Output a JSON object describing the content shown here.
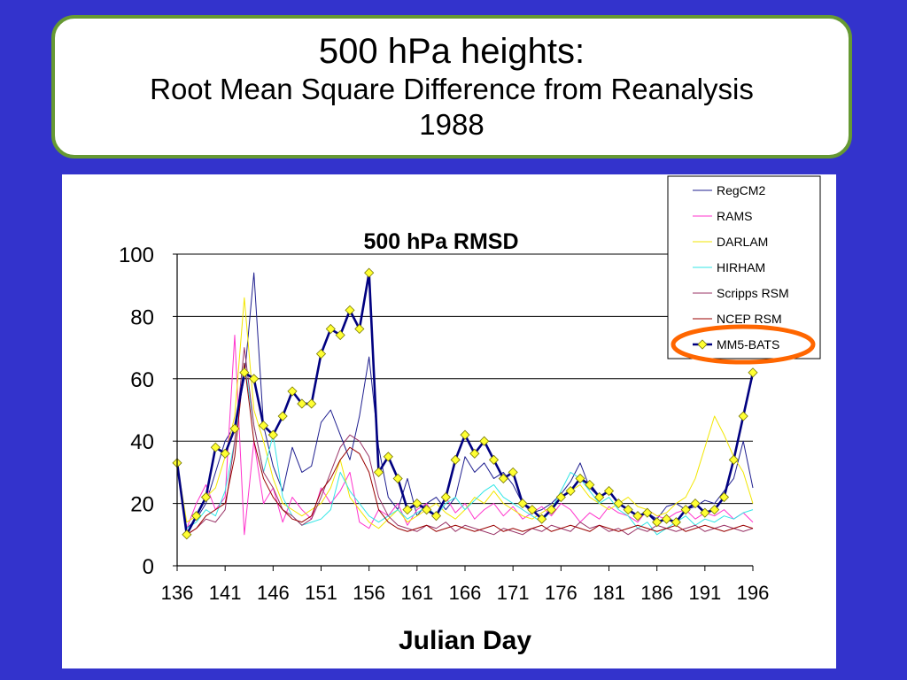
{
  "slide": {
    "title_line1": "500 hPa heights:",
    "title_line2": "Root Mean Square Difference from Reanalysis",
    "title_line3": "1988"
  },
  "colors": {
    "background": "#3333cc",
    "title_border": "#669933",
    "highlight_ellipse": "#ff6600"
  },
  "chart_data": {
    "type": "line",
    "title": "500 hPa RMSD",
    "xlabel": "Julian Day",
    "ylabel": "",
    "xlim": [
      136,
      196
    ],
    "ylim": [
      0,
      100
    ],
    "x_ticks": [
      136,
      141,
      146,
      151,
      156,
      161,
      166,
      171,
      176,
      181,
      186,
      191,
      196
    ],
    "y_ticks": [
      0,
      20,
      40,
      60,
      80,
      100
    ],
    "grid": "horizontal",
    "legend_position": "top-right",
    "highlighted_series": "MM5-BATS",
    "series": [
      {
        "name": "RegCM2",
        "color": "#1f1f8f",
        "x": [
          136,
          137,
          138,
          139,
          140,
          141,
          142,
          143,
          144,
          145,
          146,
          147,
          148,
          149,
          150,
          151,
          152,
          153,
          154,
          155,
          156,
          157,
          158,
          159,
          160,
          161,
          162,
          163,
          164,
          165,
          166,
          167,
          168,
          169,
          170,
          171,
          172,
          173,
          174,
          175,
          176,
          177,
          178,
          179,
          180,
          181,
          182,
          183,
          184,
          185,
          186,
          187,
          188,
          189,
          190,
          191,
          192,
          193,
          194,
          195,
          196
        ],
        "y": [
          33,
          12,
          15,
          20,
          30,
          40,
          45,
          60,
          94,
          45,
          32,
          24,
          38,
          30,
          32,
          46,
          50,
          42,
          34,
          48,
          67,
          38,
          22,
          18,
          28,
          16,
          20,
          22,
          18,
          22,
          35,
          30,
          33,
          28,
          30,
          26,
          20,
          17,
          18,
          20,
          23,
          27,
          33,
          25,
          22,
          24,
          20,
          18,
          16,
          17,
          15,
          19,
          20,
          18,
          19,
          21,
          20,
          24,
          28,
          40,
          25
        ]
      },
      {
        "name": "RAMS",
        "color": "#ff33cc",
        "x": [
          136,
          137,
          138,
          139,
          140,
          141,
          142,
          143,
          144,
          145,
          146,
          147,
          148,
          149,
          150,
          151,
          152,
          153,
          154,
          155,
          156,
          157,
          158,
          159,
          160,
          161,
          162,
          163,
          164,
          165,
          166,
          167,
          168,
          169,
          170,
          171,
          172,
          173,
          174,
          175,
          176,
          177,
          178,
          179,
          180,
          181,
          182,
          183,
          184,
          185,
          186,
          187,
          188,
          189,
          190,
          191,
          192,
          193,
          194,
          195,
          196
        ],
        "y": [
          33,
          12,
          20,
          26,
          18,
          22,
          74,
          10,
          40,
          20,
          25,
          14,
          22,
          18,
          15,
          25,
          20,
          24,
          30,
          14,
          12,
          18,
          16,
          20,
          13,
          18,
          20,
          15,
          22,
          17,
          20,
          15,
          18,
          20,
          16,
          19,
          15,
          17,
          19,
          16,
          20,
          18,
          14,
          17,
          15,
          19,
          17,
          16,
          14,
          18,
          16,
          15,
          17,
          18,
          15,
          17,
          16,
          18,
          15,
          17,
          14
        ]
      },
      {
        "name": "DARLAM",
        "color": "#f2e600",
        "x": [
          136,
          137,
          138,
          139,
          140,
          141,
          142,
          143,
          144,
          145,
          146,
          147,
          148,
          149,
          150,
          151,
          152,
          153,
          154,
          155,
          156,
          157,
          158,
          159,
          160,
          161,
          162,
          163,
          164,
          165,
          166,
          167,
          168,
          169,
          170,
          171,
          172,
          173,
          174,
          175,
          176,
          177,
          178,
          179,
          180,
          181,
          182,
          183,
          184,
          185,
          186,
          187,
          188,
          189,
          190,
          191,
          192,
          193,
          194,
          195,
          196
        ],
        "y": [
          33,
          14,
          16,
          22,
          25,
          35,
          48,
          86,
          50,
          40,
          28,
          20,
          18,
          16,
          18,
          20,
          25,
          34,
          22,
          18,
          14,
          12,
          15,
          18,
          14,
          16,
          18,
          20,
          17,
          15,
          18,
          22,
          20,
          24,
          20,
          18,
          16,
          15,
          17,
          19,
          22,
          24,
          26,
          22,
          20,
          18,
          20,
          22,
          19,
          18,
          16,
          17,
          20,
          22,
          28,
          38,
          48,
          42,
          35,
          30,
          20
        ]
      },
      {
        "name": "HIRHAM",
        "color": "#33e6e6",
        "x": [
          136,
          137,
          138,
          139,
          140,
          141,
          142,
          143,
          144,
          145,
          146,
          147,
          148,
          149,
          150,
          151,
          152,
          153,
          154,
          155,
          156,
          157,
          158,
          159,
          160,
          161,
          162,
          163,
          164,
          165,
          166,
          167,
          168,
          169,
          170,
          171,
          172,
          173,
          174,
          175,
          176,
          177,
          178,
          179,
          180,
          181,
          182,
          183,
          184,
          185,
          186,
          187,
          188,
          189,
          190,
          191,
          192,
          193,
          194,
          195,
          196
        ],
        "y": [
          33,
          12,
          14,
          18,
          16,
          24,
          40,
          65,
          45,
          30,
          42,
          22,
          16,
          13,
          14,
          15,
          18,
          30,
          24,
          20,
          16,
          14,
          16,
          18,
          15,
          17,
          19,
          16,
          20,
          22,
          18,
          21,
          24,
          26,
          22,
          20,
          18,
          16,
          14,
          18,
          24,
          30,
          28,
          24,
          20,
          22,
          18,
          16,
          12,
          14,
          10,
          12,
          14,
          16,
          13,
          15,
          14,
          16,
          15,
          17,
          18
        ]
      },
      {
        "name": "Scripps RSM",
        "color": "#993366",
        "x": [
          136,
          137,
          138,
          139,
          140,
          141,
          142,
          143,
          144,
          145,
          146,
          147,
          148,
          149,
          150,
          151,
          152,
          153,
          154,
          155,
          156,
          157,
          158,
          159,
          160,
          161,
          162,
          163,
          164,
          165,
          166,
          167,
          168,
          169,
          170,
          171,
          172,
          173,
          174,
          175,
          176,
          177,
          178,
          179,
          180,
          181,
          182,
          183,
          184,
          185,
          186,
          187,
          188,
          189,
          190,
          191,
          192,
          193,
          194,
          195,
          196
        ],
        "y": [
          33,
          10,
          12,
          15,
          14,
          18,
          40,
          70,
          45,
          30,
          25,
          18,
          16,
          13,
          15,
          22,
          30,
          38,
          42,
          40,
          35,
          22,
          16,
          13,
          12,
          11,
          13,
          12,
          14,
          11,
          13,
          12,
          11,
          10,
          12,
          11,
          10,
          12,
          11,
          13,
          12,
          11,
          14,
          12,
          13,
          11,
          12,
          10,
          12,
          11,
          13,
          12,
          11,
          12,
          13,
          11,
          12,
          13,
          12,
          11,
          12
        ]
      },
      {
        "name": "NCEP RSM",
        "color": "#990000",
        "x": [
          136,
          137,
          138,
          139,
          140,
          141,
          142,
          143,
          144,
          145,
          146,
          147,
          148,
          149,
          150,
          151,
          152,
          153,
          154,
          155,
          156,
          157,
          158,
          159,
          160,
          161,
          162,
          163,
          164,
          165,
          166,
          167,
          168,
          169,
          170,
          171,
          172,
          173,
          174,
          175,
          176,
          177,
          178,
          179,
          180,
          181,
          182,
          183,
          184,
          185,
          186,
          187,
          188,
          189,
          190,
          191,
          192,
          193,
          194,
          195,
          196
        ],
        "y": [
          33,
          10,
          12,
          16,
          18,
          20,
          35,
          65,
          40,
          28,
          22,
          18,
          15,
          14,
          16,
          24,
          28,
          34,
          38,
          36,
          30,
          18,
          14,
          12,
          11,
          12,
          13,
          11,
          12,
          13,
          12,
          11,
          12,
          13,
          11,
          12,
          11,
          12,
          13,
          11,
          12,
          13,
          12,
          11,
          13,
          12,
          11,
          12,
          13,
          12,
          11,
          12,
          13,
          11,
          12,
          13,
          12,
          11,
          12,
          13,
          12
        ]
      },
      {
        "name": "MM5-BATS",
        "color": "#000080",
        "marker_color": "#ffff33",
        "x": [
          136,
          137,
          138,
          139,
          140,
          141,
          142,
          143,
          144,
          145,
          146,
          147,
          148,
          149,
          150,
          151,
          152,
          153,
          154,
          155,
          156,
          157,
          158,
          159,
          160,
          161,
          162,
          163,
          164,
          165,
          166,
          167,
          168,
          169,
          170,
          171,
          172,
          173,
          174,
          175,
          176,
          177,
          178,
          179,
          180,
          181,
          182,
          183,
          184,
          185,
          186,
          187,
          188,
          189,
          190,
          191,
          192,
          193,
          194,
          195,
          196
        ],
        "y": [
          33,
          10,
          16,
          22,
          38,
          36,
          44,
          62,
          60,
          45,
          42,
          48,
          56,
          52,
          52,
          68,
          76,
          74,
          82,
          76,
          94,
          30,
          35,
          28,
          18,
          20,
          18,
          16,
          22,
          34,
          42,
          36,
          40,
          34,
          28,
          30,
          20,
          18,
          15,
          18,
          22,
          24,
          28,
          26,
          22,
          24,
          20,
          18,
          16,
          17,
          14,
          15,
          14,
          18,
          20,
          17,
          18,
          22,
          34,
          48,
          62
        ]
      }
    ]
  }
}
